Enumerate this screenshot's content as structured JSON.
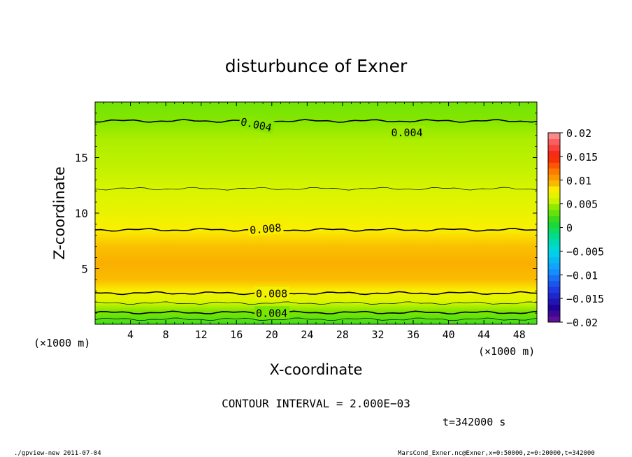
{
  "chart_data": {
    "type": "heatmap",
    "title": "disturbunce of Exner",
    "xlabel": "X-coordinate",
    "ylabel": "Z-coordinate",
    "x_unit": "(×1000 m)",
    "z_unit": "(×1000 m)",
    "xlim": [
      0,
      50
    ],
    "ylim": [
      0,
      20
    ],
    "x_ticks": [
      4,
      8,
      12,
      16,
      20,
      24,
      28,
      32,
      36,
      40,
      44,
      48
    ],
    "y_ticks": [
      5,
      10,
      15
    ],
    "colorbar": {
      "min": -0.02,
      "max": 0.02,
      "tick_labels": [
        "0.02",
        "0.015",
        "0.01",
        "0.005",
        "0",
        "−0.005",
        "−0.01",
        "−0.015",
        "−0.02"
      ],
      "tick_values": [
        0.02,
        0.015,
        0.01,
        0.005,
        0,
        -0.005,
        -0.01,
        -0.015,
        -0.02
      ]
    },
    "contour_interval": "CONTOUR INTERVAL = 2.000E−03",
    "contour_labels": [
      {
        "text": "0.004",
        "x": 16.5,
        "z": 18.3,
        "rotate": 12
      },
      {
        "text": "0.004",
        "x": 33.5,
        "z": 17.3,
        "rotate": 0
      },
      {
        "text": "0.008",
        "x": 17.5,
        "z": 8.5,
        "rotate": -5
      },
      {
        "text": "0.008",
        "x": 18.2,
        "z": 2.8,
        "rotate": 0
      },
      {
        "text": "0.004",
        "x": 18.2,
        "z": 1.05,
        "rotate": 0
      }
    ],
    "value_profile_by_z": [
      {
        "z": 0.0,
        "value": 0.002
      },
      {
        "z": 0.6,
        "value": 0.003
      },
      {
        "z": 1.2,
        "value": 0.004
      },
      {
        "z": 2.0,
        "value": 0.006
      },
      {
        "z": 3.0,
        "value": 0.008
      },
      {
        "z": 4.0,
        "value": 0.0093
      },
      {
        "z": 5.5,
        "value": 0.0097
      },
      {
        "z": 7.0,
        "value": 0.0092
      },
      {
        "z": 8.6,
        "value": 0.008
      },
      {
        "z": 10.5,
        "value": 0.0068
      },
      {
        "z": 12.2,
        "value": 0.006
      },
      {
        "z": 14.0,
        "value": 0.0055
      },
      {
        "z": 16.5,
        "value": 0.005
      },
      {
        "z": 18.5,
        "value": 0.004
      },
      {
        "z": 20.0,
        "value": 0.0035
      }
    ],
    "contour_lines": [
      {
        "level": "0.004",
        "z": 1.05,
        "weight": "bold"
      },
      {
        "level": "0.006",
        "z": 1.9,
        "weight": "thin"
      },
      {
        "level": "0.008",
        "z": 2.8,
        "weight": "bold"
      },
      {
        "level": "0.008",
        "z": 8.5,
        "weight": "bold"
      },
      {
        "level": "0.006",
        "z": 12.2,
        "weight": "thin"
      },
      {
        "level": "0.004",
        "z": 18.3,
        "weight": "bold"
      },
      {
        "level": "0.002",
        "z": 0.45,
        "weight": "thin"
      }
    ],
    "legend": "colorbar right",
    "grid": false
  },
  "time_label": "t=342000 s",
  "footer_left": "./gpview-new   2011-07-04",
  "footer_right": "MarsCond_Exner.nc@Exner,x=0:50000,z=0:20000,t=342000"
}
